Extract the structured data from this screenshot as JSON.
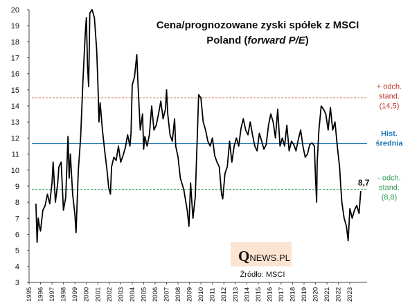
{
  "chart_data": {
    "type": "line",
    "title_line1": "Cena/prognozowane zyski spółek z MSCI",
    "title_line2_prefix": "Poland (",
    "title_line2_italic": "forward P/E",
    "title_line2_suffix": ")",
    "ylim": [
      3,
      20
    ],
    "y_ticks": [
      3,
      4,
      5,
      6,
      7,
      8,
      9,
      10,
      11,
      12,
      13,
      14,
      15,
      16,
      17,
      18,
      19,
      20
    ],
    "x_range": [
      1995,
      2024.5
    ],
    "x_ticks": [
      "1995",
      "1996",
      "1997",
      "1998",
      "1999",
      "2000",
      "2001",
      "2002",
      "2003",
      "2004",
      "2005",
      "2006",
      "2007",
      "2008",
      "2009",
      "2010",
      "2011",
      "2012",
      "2013",
      "2014",
      "2015",
      "2016",
      "2017",
      "2018",
      "2019",
      "2020",
      "2021",
      "2022",
      "2023"
    ],
    "series": [
      {
        "name": "forward P/E",
        "color": "#000000",
        "x": [
          1995.6,
          1995.7,
          1995.8,
          1995.9,
          1996.0,
          1996.2,
          1996.4,
          1996.6,
          1996.8,
          1997.0,
          1997.1,
          1997.3,
          1997.5,
          1997.6,
          1997.8,
          1998.0,
          1998.2,
          1998.4,
          1998.5,
          1998.6,
          1998.8,
          1999.0,
          1999.1,
          1999.3,
          1999.5,
          1999.7,
          1999.9,
          2000.0,
          2000.1,
          2000.2,
          2000.3,
          2000.5,
          2000.7,
          2000.9,
          2001.0,
          2001.1,
          2001.2,
          2001.4,
          2001.6,
          2001.8,
          2001.95,
          2002.1,
          2002.2,
          2002.4,
          2002.6,
          2002.8,
          2003.0,
          2003.2,
          2003.4,
          2003.6,
          2003.8,
          2003.9,
          2004.0,
          2004.2,
          2004.4,
          2004.5,
          2004.7,
          2004.9,
          2005.0,
          2005.1,
          2005.3,
          2005.5,
          2005.7,
          2005.9,
          2006.1,
          2006.3,
          2006.5,
          2006.7,
          2006.9,
          2007.0,
          2007.1,
          2007.3,
          2007.5,
          2007.7,
          2007.8,
          2008.0,
          2008.2,
          2008.5,
          2008.8,
          2008.95,
          2009.1,
          2009.3,
          2009.5,
          2009.7,
          2009.8,
          2010.0,
          2010.2,
          2010.4,
          2010.6,
          2010.8,
          2011.0,
          2011.2,
          2011.4,
          2011.6,
          2011.8,
          2011.9,
          2012.1,
          2012.3,
          2012.5,
          2012.7,
          2012.9,
          2013.1,
          2013.3,
          2013.5,
          2013.7,
          2013.9,
          2014.1,
          2014.3,
          2014.5,
          2014.7,
          2014.9,
          2015.1,
          2015.3,
          2015.5,
          2015.7,
          2015.9,
          2016.1,
          2016.3,
          2016.5,
          2016.7,
          2016.9,
          2017.1,
          2017.3,
          2017.5,
          2017.7,
          2017.9,
          2018.1,
          2018.3,
          2018.5,
          2018.7,
          2018.9,
          2019.1,
          2019.3,
          2019.5,
          2019.7,
          2019.9,
          2020.0,
          2020.1,
          2020.15,
          2020.3,
          2020.5,
          2020.7,
          2020.9,
          2021.1,
          2021.3,
          2021.5,
          2021.7,
          2021.9,
          2022.1,
          2022.2,
          2022.3,
          2022.5,
          2022.7,
          2022.85,
          2023.0,
          2023.2,
          2023.4,
          2023.6,
          2023.8,
          2023.95
        ],
        "values": [
          7.9,
          5.5,
          7.0,
          6.5,
          6.2,
          7.5,
          7.8,
          8.5,
          7.9,
          9.2,
          10.5,
          8.0,
          9.2,
          10.2,
          10.5,
          7.5,
          8.3,
          12.1,
          9.5,
          11.0,
          8.5,
          7.2,
          6.1,
          10.0,
          12.0,
          15.5,
          18.5,
          19.5,
          16.5,
          15.2,
          19.8,
          20.5,
          19.5,
          17.5,
          15.5,
          13.0,
          14.2,
          12.5,
          11.2,
          10.0,
          8.9,
          8.5,
          10.2,
          10.8,
          10.6,
          11.5,
          10.5,
          10.9,
          11.4,
          12.2,
          11.5,
          12.3,
          15.3,
          15.8,
          17.2,
          15.4,
          12.5,
          13.5,
          11.3,
          12.1,
          11.5,
          12.2,
          14.0,
          12.5,
          12.8,
          13.5,
          14.3,
          13.2,
          13.8,
          15.0,
          13.5,
          12.2,
          11.8,
          13.2,
          11.5,
          10.8,
          9.5,
          8.8,
          7.5,
          6.5,
          9.2,
          7.0,
          8.3,
          12.5,
          14.7,
          14.5,
          13.0,
          12.5,
          11.8,
          11.5,
          12.0,
          10.9,
          10.5,
          10.2,
          8.5,
          8.2,
          9.8,
          10.2,
          11.8,
          10.5,
          11.5,
          12.0,
          11.5,
          12.6,
          13.2,
          12.5,
          12.2,
          13.0,
          12.2,
          11.5,
          11.2,
          12.3,
          11.8,
          11.3,
          11.6,
          12.8,
          13.5,
          13.0,
          12.0,
          13.8,
          11.5,
          12.0,
          11.5,
          12.8,
          11.2,
          11.8,
          11.6,
          11.2,
          11.9,
          12.5,
          11.5,
          10.8,
          11.0,
          11.6,
          11.7,
          11.5,
          9.5,
          8.0,
          10.5,
          12.5,
          14.0,
          13.8,
          13.5,
          12.5,
          13.9,
          12.5,
          13.0,
          11.5,
          10.2,
          9.0,
          8.0,
          7.0,
          6.5,
          5.6,
          7.6,
          7.0,
          7.5,
          7.8,
          7.3,
          8.7
        ]
      }
    ],
    "reference_lines": [
      {
        "name": "plus-std",
        "value": 14.5,
        "color": "#c0392b",
        "dash": true,
        "labels": [
          "+ odch.",
          "stand.",
          "(14,5)"
        ]
      },
      {
        "name": "hist-mean",
        "value": 11.65,
        "color": "#1f77b4",
        "dash": false,
        "labels": [
          "Hist.",
          "średnia"
        ]
      },
      {
        "name": "minus-std",
        "value": 8.8,
        "color": "#2e9e50",
        "dash": true,
        "labels": [
          "- odch.",
          "stand.",
          "(8,8)"
        ]
      }
    ],
    "last_value_label": "8,7",
    "source_label": "Źródło: MSCI",
    "logo": {
      "first": "Q",
      "rest": "NEWS.PL",
      "bg": "#fce4d2"
    }
  }
}
